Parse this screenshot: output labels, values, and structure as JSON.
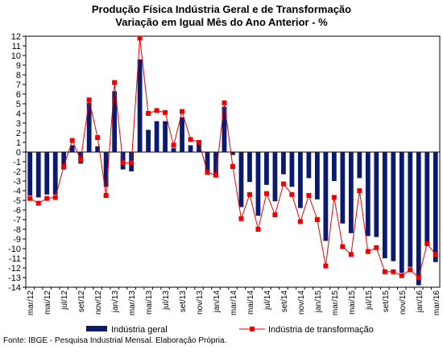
{
  "chart_data": {
    "type": "bar",
    "title": [
      "Produção Física Indústria Geral e de Transformação",
      "Variação em Igual Mês do Ano Anterior - %"
    ],
    "xlabel": "",
    "ylabel": "",
    "ylim": [
      -14,
      12
    ],
    "yticks": [
      12,
      11,
      10,
      9,
      8,
      7,
      6,
      5,
      4,
      3,
      2,
      1,
      0,
      -1,
      -2,
      -3,
      -4,
      -5,
      -6,
      -7,
      -8,
      -9,
      -10,
      -11,
      -12,
      -13,
      -14
    ],
    "grid": false,
    "legend_position": "bottom",
    "categories": [
      "mar/12",
      "abr/12",
      "mai/12",
      "jun/12",
      "jul/12",
      "ago/12",
      "set/12",
      "out/12",
      "nov/12",
      "dez/12",
      "jan/13",
      "fev/13",
      "mar/13",
      "abr/13",
      "mai/13",
      "jun/13",
      "jul/13",
      "ago/13",
      "set/13",
      "out/13",
      "nov/13",
      "dez/13",
      "jan/14",
      "fev/14",
      "mar/14",
      "abr/14",
      "mai/14",
      "jun/14",
      "jul/14",
      "ago/14",
      "set/14",
      "out/14",
      "nov/14",
      "dez/14",
      "jan/15",
      "fev/15",
      "mar/15",
      "abr/15",
      "mai/15",
      "jun/15",
      "jul/15",
      "ago/15",
      "set/15",
      "out/15",
      "nov/15",
      "dez/15",
      "jan/16",
      "fev/16",
      "mar/16"
    ],
    "x_tick_labels": [
      "mar/12",
      "mai/12",
      "jul/12",
      "set/12",
      "nov/12",
      "jan/13",
      "mar/13",
      "mai/13",
      "jul/13",
      "set/13",
      "nov/13",
      "jan/14",
      "mar/14",
      "mai/14",
      "jul/14",
      "set/14",
      "nov/14",
      "jan/15",
      "mar/15",
      "mai/15",
      "jul/15",
      "set/15",
      "nov/15",
      "jan/16",
      "mar/16"
    ],
    "series": [
      {
        "name": "Indústria geral",
        "kind": "bar",
        "color": "#0a1a6e",
        "values": [
          -4.5,
          -4.7,
          -4.4,
          -4.4,
          -1.8,
          0.7,
          -1.2,
          5.1,
          0.6,
          -3.6,
          6.3,
          -1.8,
          -2.0,
          9.6,
          2.3,
          3.2,
          3.2,
          0.4,
          3.6,
          0.7,
          1.1,
          -2.0,
          -2.4,
          4.7,
          -0.3,
          -5.7,
          -3.1,
          -6.6,
          -3.4,
          -5.1,
          -2.3,
          -3.6,
          -5.8,
          -2.7,
          -4.9,
          -9.2,
          -3.0,
          -7.4,
          -8.4,
          -2.7,
          -8.7,
          -8.8,
          -11.0,
          -11.3,
          -12.5,
          -11.9,
          -13.8,
          -9.7,
          -11.4
        ]
      },
      {
        "name": "Indústria de transformação",
        "kind": "line",
        "color": "#ee0000",
        "values": [
          -4.8,
          -5.3,
          -4.8,
          -4.7,
          -1.5,
          1.2,
          -0.8,
          5.4,
          1.5,
          -4.5,
          7.2,
          -1.1,
          -1.1,
          11.8,
          4.0,
          4.3,
          4.1,
          0.7,
          4.2,
          1.3,
          1.0,
          -2.1,
          -2.4,
          5.1,
          -1.5,
          -6.9,
          -4.4,
          -8.0,
          -4.3,
          -6.5,
          -3.3,
          -4.4,
          -7.2,
          -4.5,
          -7.0,
          -11.8,
          -4.7,
          -9.8,
          -10.6,
          -4.0,
          -10.3,
          -9.9,
          -12.4,
          -12.4,
          -12.8,
          -12.2,
          -13.0,
          -9.5,
          -10.6
        ]
      }
    ]
  },
  "footer": {
    "source": "Fonte: IBGE - Pesquisa Industrial Mensal. Elaboração Própria."
  }
}
